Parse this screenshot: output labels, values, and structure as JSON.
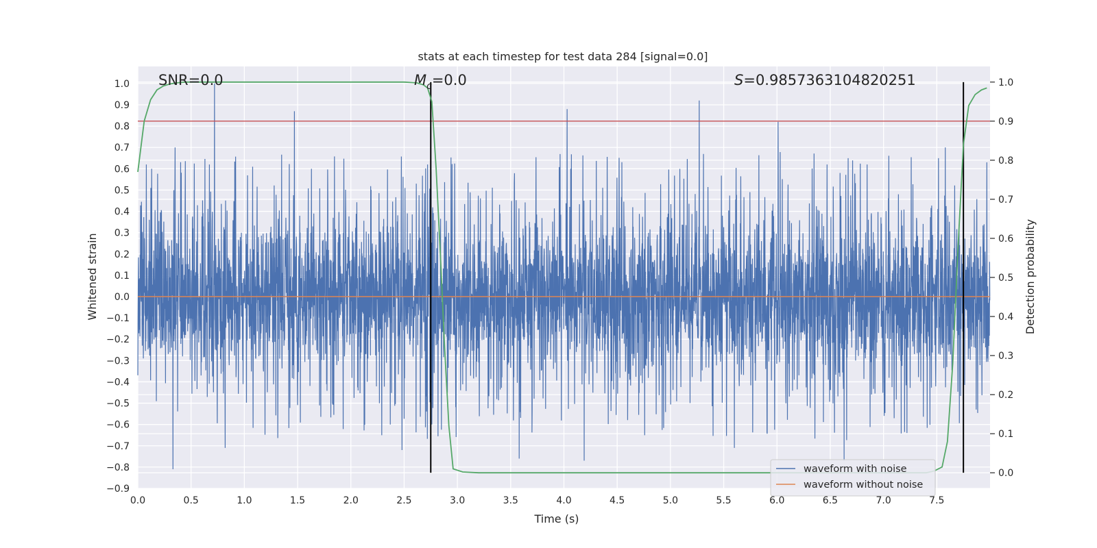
{
  "chart_data": {
    "type": "line",
    "title": "stats at each timestep for test data 284 [signal=0.0]",
    "xlabel": "Time (s)",
    "ylabel_left": "Whitened strain",
    "ylabel_right": "Detection probability",
    "xlim": [
      0.0,
      8.0
    ],
    "ylim_left": [
      -0.9,
      1.08
    ],
    "ylim_right": [
      -0.04,
      1.04
    ],
    "x_ticks": [
      "0.0",
      "0.5",
      "1.0",
      "1.5",
      "2.0",
      "2.5",
      "3.0",
      "3.5",
      "4.0",
      "4.5",
      "5.0",
      "5.5",
      "6.0",
      "6.5",
      "7.0",
      "7.5"
    ],
    "x_tick_values": [
      0.0,
      0.5,
      1.0,
      1.5,
      2.0,
      2.5,
      3.0,
      3.5,
      4.0,
      4.5,
      5.0,
      5.5,
      6.0,
      6.5,
      7.0,
      7.5
    ],
    "y_ticks_left": [
      "1.0",
      "0.9",
      "0.8",
      "0.7",
      "0.6",
      "0.5",
      "0.4",
      "0.3",
      "0.2",
      "0.1",
      "0.0",
      "−0.1",
      "−0.2",
      "−0.3",
      "−0.4",
      "−0.5",
      "−0.6",
      "−0.7",
      "−0.8",
      "−0.9"
    ],
    "y_tick_values_left": [
      1.0,
      0.9,
      0.8,
      0.7,
      0.6,
      0.5,
      0.4,
      0.3,
      0.2,
      0.1,
      0.0,
      -0.1,
      -0.2,
      -0.3,
      -0.4,
      -0.5,
      -0.6,
      -0.7,
      -0.8,
      -0.9
    ],
    "y_ticks_right": [
      "1.0",
      "0.9",
      "0.8",
      "0.7",
      "0.6",
      "0.5",
      "0.4",
      "0.3",
      "0.2",
      "0.1",
      "0.0"
    ],
    "y_tick_values_right": [
      1.0,
      0.9,
      0.8,
      0.7,
      0.6,
      0.5,
      0.4,
      0.3,
      0.2,
      0.1,
      0.0
    ],
    "grid": true,
    "legend_position": "lower-right",
    "annotations": {
      "snr": "SNR=0.0",
      "mc_symbol": "M",
      "mc_sub": "c",
      "mc_value": "=0.0",
      "s_symbol": "S",
      "s_value": "=0.9857363104820251"
    },
    "series": [
      {
        "name": "waveform with noise",
        "axis": "left",
        "color": "#4c72b0",
        "description_kind": "noise",
        "amplitude_envelope": [
          -0.81,
          1.0
        ],
        "peaks": [
          [
            0.08,
            0.62
          ],
          [
            0.13,
            0.6
          ],
          [
            0.33,
            -0.81
          ],
          [
            0.35,
            0.7
          ],
          [
            0.72,
            1.0
          ],
          [
            0.82,
            -0.71
          ],
          [
            1.47,
            0.87
          ],
          [
            1.63,
            0.6
          ],
          [
            2.48,
            -0.72
          ],
          [
            2.72,
            0.62
          ],
          [
            2.76,
            -0.6
          ],
          [
            3.58,
            -0.76
          ],
          [
            4.03,
            0.88
          ],
          [
            4.19,
            -0.77
          ],
          [
            5.27,
            0.92
          ],
          [
            5.6,
            -0.71
          ],
          [
            6.01,
            0.82
          ],
          [
            6.47,
            0.62
          ],
          [
            6.63,
            -0.77
          ],
          [
            7.58,
            0.7
          ],
          [
            7.97,
            0.63
          ]
        ]
      },
      {
        "name": "waveform without noise",
        "axis": "left",
        "color": "#dd8452",
        "x": [
          0.0,
          8.0
        ],
        "y": [
          0.0,
          0.0
        ]
      },
      {
        "name": "detection probability",
        "axis": "right",
        "color": "#55a868",
        "x": [
          0.0,
          0.06,
          0.12,
          0.18,
          0.24,
          0.3,
          0.36,
          0.45,
          0.6,
          0.8,
          1.0,
          1.5,
          2.0,
          2.5,
          2.62,
          2.68,
          2.72,
          2.76,
          2.8,
          2.84,
          2.88,
          2.92,
          2.96,
          3.05,
          3.2,
          4.0,
          5.0,
          6.0,
          7.0,
          7.4,
          7.48,
          7.55,
          7.6,
          7.65,
          7.7,
          7.75,
          7.8,
          7.86,
          7.92,
          7.97
        ],
        "y": [
          0.77,
          0.9,
          0.955,
          0.98,
          0.99,
          0.995,
          0.998,
          1.0,
          1.0,
          1.0,
          1.0,
          1.0,
          1.0,
          1.0,
          0.998,
          0.993,
          0.985,
          0.95,
          0.78,
          0.56,
          0.32,
          0.12,
          0.01,
          0.002,
          0.0,
          0.0,
          0.0,
          0.0,
          0.0,
          0.0,
          0.005,
          0.015,
          0.08,
          0.28,
          0.58,
          0.84,
          0.94,
          0.968,
          0.98,
          0.985
        ]
      }
    ],
    "reference_lines": {
      "threshold_right": 0.9,
      "threshold_color": "#c44e52",
      "vertical_x": [
        2.75,
        7.75
      ],
      "vertical_color": "#000000"
    }
  }
}
